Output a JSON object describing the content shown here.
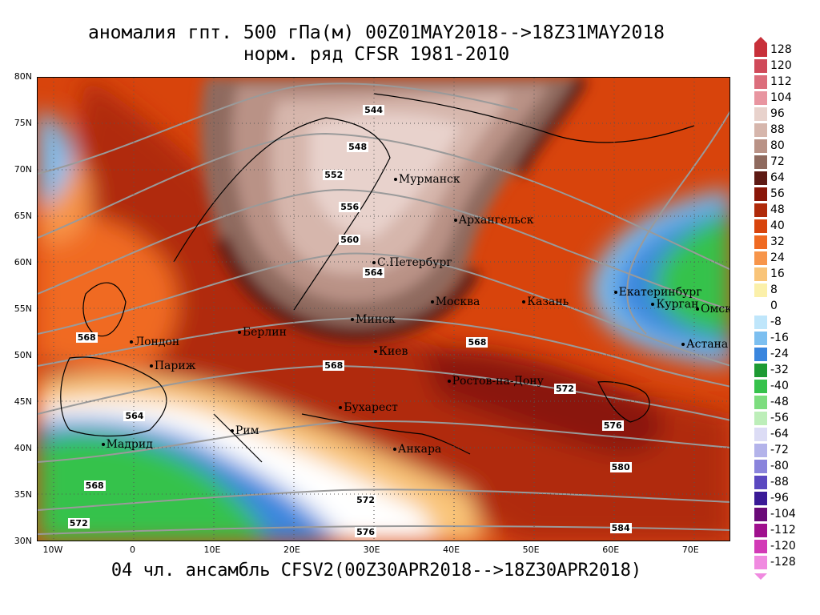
{
  "title_line1": "аномалия гпт. 500 гПа(м) 00Z01MAY2018-->18Z31MAY2018",
  "title_line2": "норм. ряд CFSR 1981-2010",
  "footer": "04 чл. ансамбль CFSV2(00Z30APR2018-->18Z30APR2018)",
  "lat_labels": [
    "80N",
    "75N",
    "70N",
    "65N",
    "60N",
    "55N",
    "50N",
    "45N",
    "40N",
    "35N",
    "30N"
  ],
  "lon_labels": [
    "10W",
    "0",
    "10E",
    "20E",
    "30E",
    "40E",
    "50E",
    "60E",
    "70E"
  ],
  "cities": [
    {
      "name": "Мурманск",
      "lon": 33,
      "lat": 69
    },
    {
      "name": "Архангельск",
      "lon": 40.5,
      "lat": 64.6
    },
    {
      "name": "С.Петербург",
      "lon": 30.3,
      "lat": 60
    },
    {
      "name": "Москва",
      "lon": 37.6,
      "lat": 55.8
    },
    {
      "name": "Казань",
      "lon": 49.1,
      "lat": 55.8
    },
    {
      "name": "Екатеринбург",
      "lon": 60.6,
      "lat": 56.8
    },
    {
      "name": "Курган",
      "lon": 65.3,
      "lat": 55.5
    },
    {
      "name": "Омск",
      "lon": 73.4,
      "lat": 55
    },
    {
      "name": "Астана",
      "lon": 71.4,
      "lat": 51.2
    },
    {
      "name": "Минск",
      "lon": 27.6,
      "lat": 53.9
    },
    {
      "name": "Киев",
      "lon": 30.5,
      "lat": 50.4
    },
    {
      "name": "Берлин",
      "lon": 13.4,
      "lat": 52.5
    },
    {
      "name": "Лондон",
      "lon": -0.1,
      "lat": 51.5
    },
    {
      "name": "Париж",
      "lon": 2.35,
      "lat": 48.9
    },
    {
      "name": "Ростов-на-Дону",
      "lon": 39.7,
      "lat": 47.2
    },
    {
      "name": "Бухарест",
      "lon": 26.1,
      "lat": 44.4
    },
    {
      "name": "Рим",
      "lon": 12.5,
      "lat": 41.9
    },
    {
      "name": "Мадрид",
      "lon": -3.7,
      "lat": 40.4
    },
    {
      "name": "Анкара",
      "lon": 32.9,
      "lat": 39.9
    }
  ],
  "contour_labels": [
    {
      "text": "544",
      "lon": 30,
      "lat": 76.5
    },
    {
      "text": "548",
      "lon": 28,
      "lat": 72.5
    },
    {
      "text": "552",
      "lon": 25,
      "lat": 69.5
    },
    {
      "text": "556",
      "lon": 27,
      "lat": 66
    },
    {
      "text": "560",
      "lon": 27,
      "lat": 62.5
    },
    {
      "text": "564",
      "lon": 30,
      "lat": 59
    },
    {
      "text": "568",
      "lon": 43,
      "lat": 51.5
    },
    {
      "text": "568",
      "lon": 25,
      "lat": 49
    },
    {
      "text": "568",
      "lon": -6,
      "lat": 52
    },
    {
      "text": "564",
      "lon": 0,
      "lat": 43.5
    },
    {
      "text": "568",
      "lon": -5,
      "lat": 36
    },
    {
      "text": "572",
      "lon": -7,
      "lat": 32
    },
    {
      "text": "572",
      "lon": 29,
      "lat": 34.5
    },
    {
      "text": "576",
      "lon": 29,
      "lat": 31
    },
    {
      "text": "572",
      "lon": 54,
      "lat": 46.5
    },
    {
      "text": "576",
      "lon": 60,
      "lat": 42.5
    },
    {
      "text": "580",
      "lon": 61,
      "lat": 38
    },
    {
      "text": "584",
      "lon": 61,
      "lat": 31.5
    }
  ],
  "colorbar": [
    {
      "label": "128",
      "color": "#c8303a"
    },
    {
      "label": "120",
      "color": "#d04a5a"
    },
    {
      "label": "112",
      "color": "#dc6e7c"
    },
    {
      "label": "104",
      "color": "#e895a0"
    },
    {
      "label": "96",
      "color": "#e8d2cc"
    },
    {
      "label": "88",
      "color": "#d6b6ac"
    },
    {
      "label": "80",
      "color": "#b99286"
    },
    {
      "label": "72",
      "color": "#8f6a5e"
    },
    {
      "label": "64",
      "color": "#5e1a14"
    },
    {
      "label": "56",
      "color": "#8a1608"
    },
    {
      "label": "48",
      "color": "#b02a0a"
    },
    {
      "label": "40",
      "color": "#d8440c"
    },
    {
      "label": "32",
      "color": "#f06a22"
    },
    {
      "label": "24",
      "color": "#f7954a"
    },
    {
      "label": "16",
      "color": "#f9c478"
    },
    {
      "label": "8",
      "color": "#fbf0aa"
    },
    {
      "label": "0",
      "color": "#ffffff"
    },
    {
      "label": "-8",
      "color": "#bfe6fb"
    },
    {
      "label": "-16",
      "color": "#7cbff0"
    },
    {
      "label": "-24",
      "color": "#3a86de"
    },
    {
      "label": "-32",
      "color": "#1d9a33"
    },
    {
      "label": "-40",
      "color": "#36c24c"
    },
    {
      "label": "-48",
      "color": "#7ddd7f"
    },
    {
      "label": "-56",
      "color": "#bdeeb9"
    },
    {
      "label": "-64",
      "color": "#dcdcf5"
    },
    {
      "label": "-72",
      "color": "#b3b3ea"
    },
    {
      "label": "-80",
      "color": "#8a84dc"
    },
    {
      "label": "-88",
      "color": "#5a48c0"
    },
    {
      "label": "-96",
      "color": "#3a1a96"
    },
    {
      "label": "-104",
      "color": "#6a0a78"
    },
    {
      "label": "-112",
      "color": "#a0108e"
    },
    {
      "label": "-120",
      "color": "#d23ab6"
    },
    {
      "label": "-128",
      "color": "#f08ae0"
    }
  ]
}
